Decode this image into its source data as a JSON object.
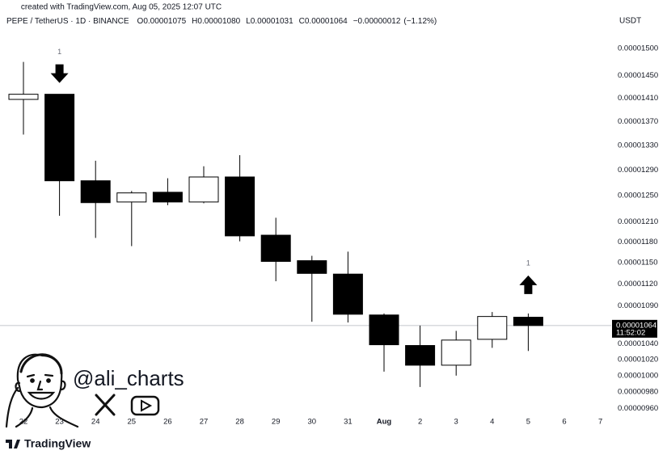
{
  "chart_data": {
    "type": "candlestick",
    "watermark": "created with TradingView.com, Aug 05, 2025 12:07 UTC",
    "title": "PEPE / TetherUS · 1D · BINANCE",
    "currency": "USDT",
    "legend": [
      {
        "prefix": "O",
        "value": 1.075e-05,
        "label": "0.00001075"
      },
      {
        "prefix": "H",
        "value": 1.08e-05,
        "label": "0.00001080"
      },
      {
        "prefix": "L",
        "value": 1.031e-05,
        "label": "0.00001031"
      },
      {
        "prefix": "C",
        "value": 1.064e-05,
        "label": "0.00001064"
      }
    ],
    "change": {
      "value": -1.2e-07,
      "label": "−0.00000012"
    },
    "change_pct": {
      "value": -1.12,
      "label": "(−1.12%)"
    },
    "categories": [
      "22",
      "23",
      "24",
      "25",
      "26",
      "27",
      "28",
      "29",
      "30",
      "31",
      "Aug",
      "2",
      "3",
      "4",
      "5",
      "6",
      "7"
    ],
    "open": [
      1.408e-05,
      1.417e-05,
      1.273e-05,
      1.24e-05,
      1.255e-05,
      1.24e-05,
      1.279e-05,
      1.19e-05,
      1.153e-05,
      1.134e-05,
      1.078e-05,
      1.038e-05,
      1.013e-05,
      1.046e-05,
      1.075e-05,
      null,
      null
    ],
    "high": [
      1.475e-05,
      1.417e-05,
      1.305e-05,
      1.257e-05,
      1.277e-05,
      1.296e-05,
      1.314e-05,
      1.216e-05,
      1.16e-05,
      1.166e-05,
      1.08e-05,
      1.064e-05,
      1.057e-05,
      1.082e-05,
      1.08e-05,
      null,
      null
    ],
    "low": [
      1.348e-05,
      1.219e-05,
      1.186e-05,
      1.174e-05,
      1.235e-05,
      1.238e-05,
      1.181e-05,
      1.124e-05,
      1.069e-05,
      1.068e-05,
      1.005e-05,
      9.86e-06,
      1e-05,
      1.035e-05,
      1.031e-05,
      null,
      null
    ],
    "close": [
      1.417e-05,
      1.273e-05,
      1.239e-05,
      1.254e-05,
      1.24e-05,
      1.279e-05,
      1.189e-05,
      1.152e-05,
      1.135e-05,
      1.079e-05,
      1.039e-05,
      1.013e-05,
      1.045e-05,
      1.076e-05,
      1.064e-05,
      null,
      null
    ],
    "up_color": "#ffffff",
    "down_color": "#000000",
    "log_scale": true,
    "grid": false,
    "ylim": [
      9.51e-06,
      1.53e-05
    ],
    "yticks": [
      {
        "value": 1.5e-05,
        "label": "0.00001500"
      },
      {
        "value": 1.45e-05,
        "label": "0.00001450"
      },
      {
        "value": 1.41e-05,
        "label": "0.00001410"
      },
      {
        "value": 1.37e-05,
        "label": "0.00001370"
      },
      {
        "value": 1.33e-05,
        "label": "0.00001330"
      },
      {
        "value": 1.29e-05,
        "label": "0.00001290"
      },
      {
        "value": 1.25e-05,
        "label": "0.00001250"
      },
      {
        "value": 1.21e-05,
        "label": "0.00001210"
      },
      {
        "value": 1.18e-05,
        "label": "0.00001180"
      },
      {
        "value": 1.15e-05,
        "label": "0.00001150"
      },
      {
        "value": 1.12e-05,
        "label": "0.00001120"
      },
      {
        "value": 1.09e-05,
        "label": "0.00001090"
      },
      {
        "value": 1.04e-05,
        "label": "0.00001040"
      },
      {
        "value": 1.02e-05,
        "label": "0.00001020"
      },
      {
        "value": 1e-05,
        "label": "0.00001000"
      },
      {
        "value": 9.8e-06,
        "label": "0.00000980"
      },
      {
        "value": 9.6e-06,
        "label": "0.00000960"
      }
    ],
    "price_tag": {
      "value": 1.064e-05,
      "label": "0.00001064",
      "countdown": "11:52:02"
    },
    "annotations": [
      {
        "text": "1",
        "category": "23",
        "direction": "down"
      },
      {
        "text": "1",
        "category": "5",
        "direction": "up"
      }
    ]
  },
  "branding": {
    "handle": "@ali_charts",
    "logo": "TradingView"
  }
}
